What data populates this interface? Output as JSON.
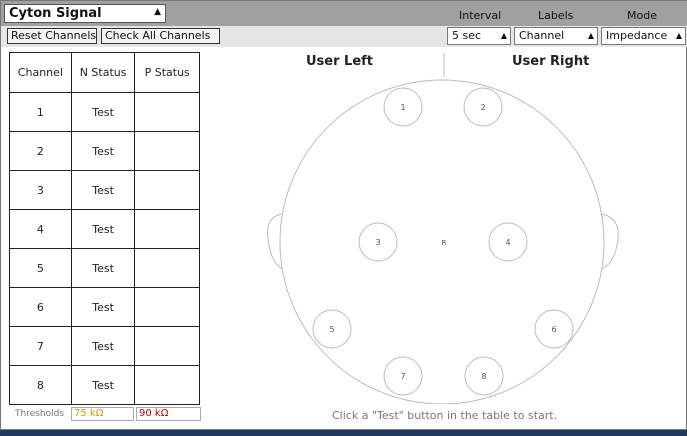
{
  "header": {
    "title": "Cyton Signal",
    "interval_label": "Interval",
    "labels_label": "Labels",
    "mode_label": "Mode"
  },
  "toolbar": {
    "reset_label": "Reset Channels",
    "check_all_label": "Check All Channels",
    "interval_value": "5 sec",
    "labels_value": "Channel",
    "mode_value": "Impedance"
  },
  "table": {
    "headers": [
      "Channel",
      "N Status",
      "P Status"
    ],
    "rows": [
      {
        "channel": "1",
        "n_status": "Test",
        "p_status": ""
      },
      {
        "channel": "2",
        "n_status": "Test",
        "p_status": ""
      },
      {
        "channel": "3",
        "n_status": "Test",
        "p_status": ""
      },
      {
        "channel": "4",
        "n_status": "Test",
        "p_status": ""
      },
      {
        "channel": "5",
        "n_status": "Test",
        "p_status": ""
      },
      {
        "channel": "6",
        "n_status": "Test",
        "p_status": ""
      },
      {
        "channel": "7",
        "n_status": "Test",
        "p_status": ""
      },
      {
        "channel": "8",
        "n_status": "Test",
        "p_status": ""
      }
    ]
  },
  "thresholds": {
    "label": "Thresholds",
    "n_value": "75 kΩ",
    "p_value": "90 kΩ",
    "n_color": "#c8a000",
    "p_color": "#cc0000"
  },
  "head": {
    "left_label": "User Left",
    "right_label": "User Right",
    "reference_label": "R",
    "electrodes": [
      "1",
      "2",
      "3",
      "4",
      "5",
      "6",
      "7",
      "8"
    ]
  },
  "hint": "Click a \"Test\" button in the table to start."
}
